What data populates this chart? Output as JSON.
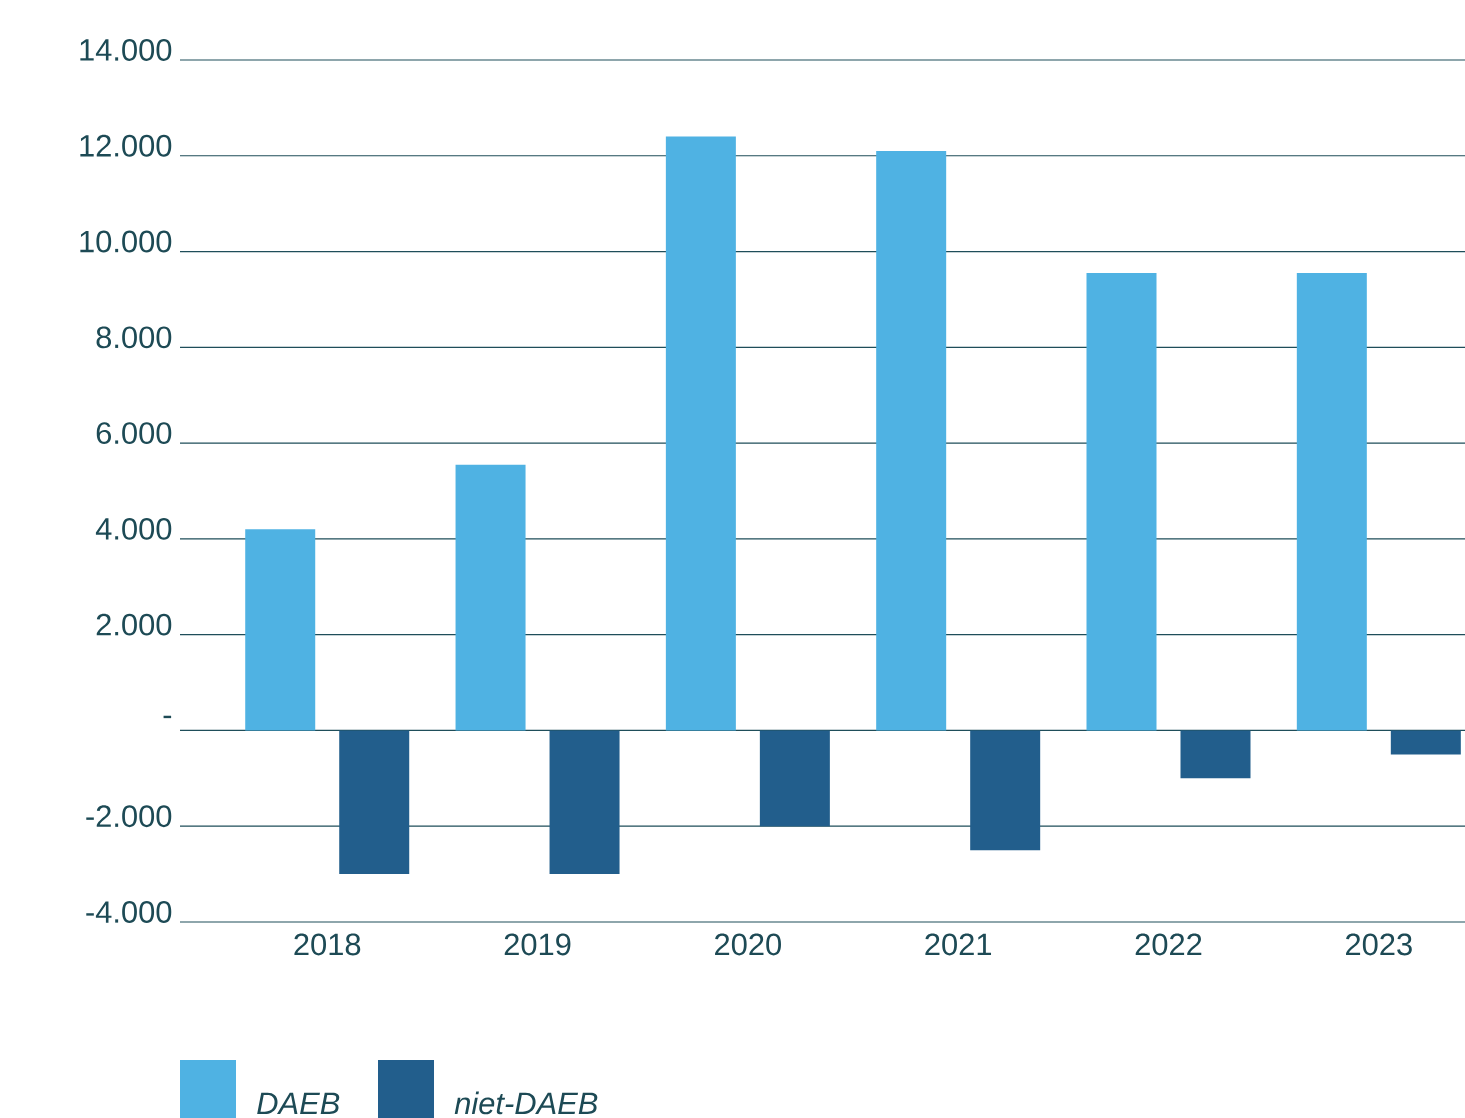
{
  "chart_data": {
    "type": "bar",
    "categories": [
      "2018",
      "2019",
      "2020",
      "2021",
      "2022",
      "2023"
    ],
    "series": [
      {
        "name": "DAEB",
        "color": "#4fb2e3",
        "values": [
          4200,
          5550,
          12400,
          12100,
          9550,
          9550
        ]
      },
      {
        "name": "niet-DAEB",
        "color": "#225e8c",
        "values": [
          -3000,
          -3000,
          -2000,
          -2500,
          -1000,
          -500
        ]
      }
    ],
    "ylim": [
      -4000,
      14000
    ],
    "yticks": [
      {
        "value": -4000,
        "label": "-4.000"
      },
      {
        "value": -2000,
        "label": "-2.000"
      },
      {
        "value": 0,
        "label": "-"
      },
      {
        "value": 2000,
        "label": "2.000"
      },
      {
        "value": 4000,
        "label": "4.000"
      },
      {
        "value": 6000,
        "label": "6.000"
      },
      {
        "value": 8000,
        "label": "8.000"
      },
      {
        "value": 10000,
        "label": "10.000"
      },
      {
        "value": 12000,
        "label": "12.000"
      },
      {
        "value": 14000,
        "label": "14.000"
      }
    ],
    "grid": "y",
    "legend": "bottom left"
  }
}
